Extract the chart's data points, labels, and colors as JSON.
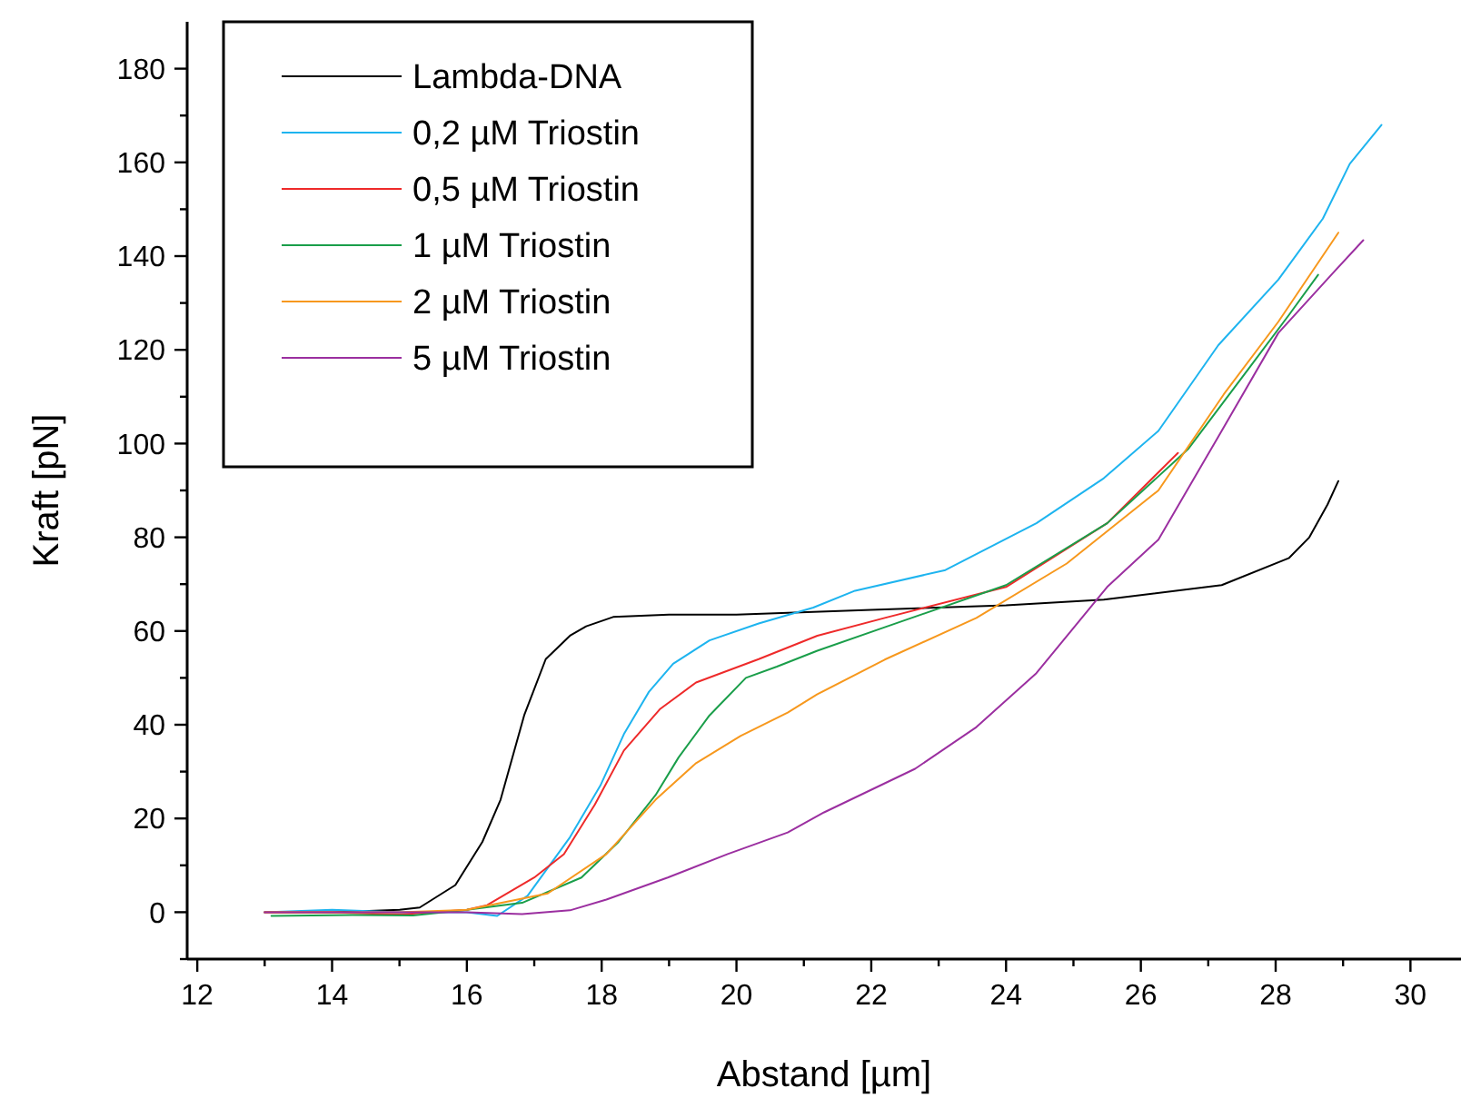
{
  "chart_data": {
    "type": "line",
    "xlabel": "Abstand [µm]",
    "ylabel": "Kraft [pN]",
    "xlim": [
      11.85,
      30.75
    ],
    "ylim": [
      -10,
      190
    ],
    "xticks": [
      12,
      {
        "value": 13,
        "label": null
      },
      14,
      {
        "value": 15,
        "label": null
      },
      16,
      {
        "value": 17,
        "label": null
      },
      18,
      {
        "value": 19,
        "label": null
      },
      20,
      {
        "value": 21,
        "label": null
      },
      22,
      {
        "value": 23,
        "label": null
      },
      24,
      {
        "value": 25,
        "label": null
      },
      26,
      {
        "value": 27,
        "label": null
      },
      28,
      {
        "value": 29,
        "label": null
      },
      30
    ],
    "yticks": [
      {
        "value": -10,
        "label": null
      },
      0,
      {
        "value": 10,
        "label": null
      },
      20,
      {
        "value": 30,
        "label": null
      },
      40,
      {
        "value": 50,
        "label": null
      },
      60,
      {
        "value": 70,
        "label": null
      },
      80,
      {
        "value": 90,
        "label": null
      },
      100,
      {
        "value": 110,
        "label": null
      },
      120,
      {
        "value": 130,
        "label": null
      },
      140,
      {
        "value": 150,
        "label": null
      },
      160,
      {
        "value": 170,
        "label": null
      },
      180
    ],
    "grid": false,
    "legend": "top left",
    "marker": "none",
    "line_style": "solid",
    "series": [
      {
        "name": "Lambda-DNA",
        "color": "#000000",
        "x": [
          13.0,
          14.0,
          15.0,
          15.3,
          15.83,
          16.23,
          16.5,
          16.85,
          17.17,
          17.53,
          17.77,
          18.17,
          19.0,
          20.0,
          22.0,
          24.0,
          25.45,
          27.2,
          28.2,
          28.5,
          28.77,
          28.93
        ],
        "values": [
          0,
          0,
          0.5,
          1,
          5.8,
          15,
          24,
          42,
          54,
          59,
          61,
          63,
          63.5,
          63.5,
          64.5,
          65.5,
          66.7,
          69.8,
          75.6,
          80,
          87,
          92
        ]
      },
      {
        "name": "0,2 µM Triostin",
        "color": "#1eb4ef",
        "x": [
          13.0,
          14.0,
          15.0,
          16.0,
          16.45,
          16.9,
          17.53,
          17.98,
          18.33,
          18.7,
          19.06,
          19.6,
          20.33,
          21.14,
          21.76,
          23.1,
          24.45,
          25.45,
          26.26,
          27.15,
          28.04,
          28.7,
          29.1,
          29.57
        ],
        "values": [
          0,
          0.5,
          0,
          0,
          -0.8,
          3.5,
          16,
          27,
          38,
          47,
          53,
          58,
          61.6,
          65,
          68.6,
          73,
          83,
          92.6,
          102.7,
          121,
          135,
          148,
          159.7,
          168
        ]
      },
      {
        "name": "0,5 µM Triostin",
        "color": "#ee2a2a",
        "x": [
          13.0,
          14.0,
          15.0,
          16.0,
          16.3,
          17.0,
          17.44,
          17.9,
          18.33,
          18.87,
          19.4,
          20.33,
          21.2,
          22.2,
          24.0,
          25.5,
          26.55
        ],
        "values": [
          0,
          0,
          -0.5,
          0.5,
          1.5,
          7.4,
          12.4,
          23,
          34.5,
          43.4,
          49,
          54,
          59,
          62.8,
          69.4,
          83,
          98
        ]
      },
      {
        "name": "1 µM Triostin",
        "color": "#1a9e4a",
        "x": [
          13.1,
          14.3,
          15.2,
          16.0,
          16.82,
          17.7,
          18.25,
          18.8,
          19.14,
          19.6,
          20.14,
          20.6,
          21.2,
          22.2,
          24.0,
          25.5,
          26.7,
          27.6,
          28.2,
          28.63
        ],
        "values": [
          -0.8,
          -0.6,
          -0.7,
          0.5,
          2,
          7.4,
          15,
          25,
          33,
          42,
          50,
          52.4,
          55.8,
          60.8,
          69.8,
          83,
          98.8,
          116,
          127.5,
          136
        ]
      },
      {
        "name": "2 µM Triostin",
        "color": "#f7981d",
        "x": [
          13.0,
          14.0,
          15.0,
          16.0,
          17.2,
          18.07,
          18.8,
          19.4,
          20.06,
          20.76,
          21.2,
          22.2,
          23.56,
          24.9,
          26.26,
          27.23,
          28.04,
          28.93
        ],
        "values": [
          0,
          0,
          0,
          0.5,
          4,
          12.4,
          24,
          31.8,
          37.6,
          42.6,
          46.5,
          53.9,
          62.8,
          74.4,
          90,
          110.5,
          126,
          145
        ]
      },
      {
        "name": "5 µM Triostin",
        "color": "#9b2fa0",
        "x": [
          13.0,
          14.0,
          15.0,
          16.0,
          16.82,
          17.53,
          18.07,
          18.98,
          19.87,
          20.76,
          21.3,
          22.65,
          23.56,
          24.45,
          25.5,
          26.26,
          27.15,
          28.04,
          28.85,
          29.3
        ],
        "values": [
          0,
          0,
          0,
          0,
          -0.4,
          0.4,
          2.7,
          7.4,
          12.4,
          17,
          21.3,
          30.6,
          39.5,
          51,
          69.4,
          79.5,
          101.5,
          123.6,
          136.4,
          143.4
        ]
      }
    ]
  }
}
